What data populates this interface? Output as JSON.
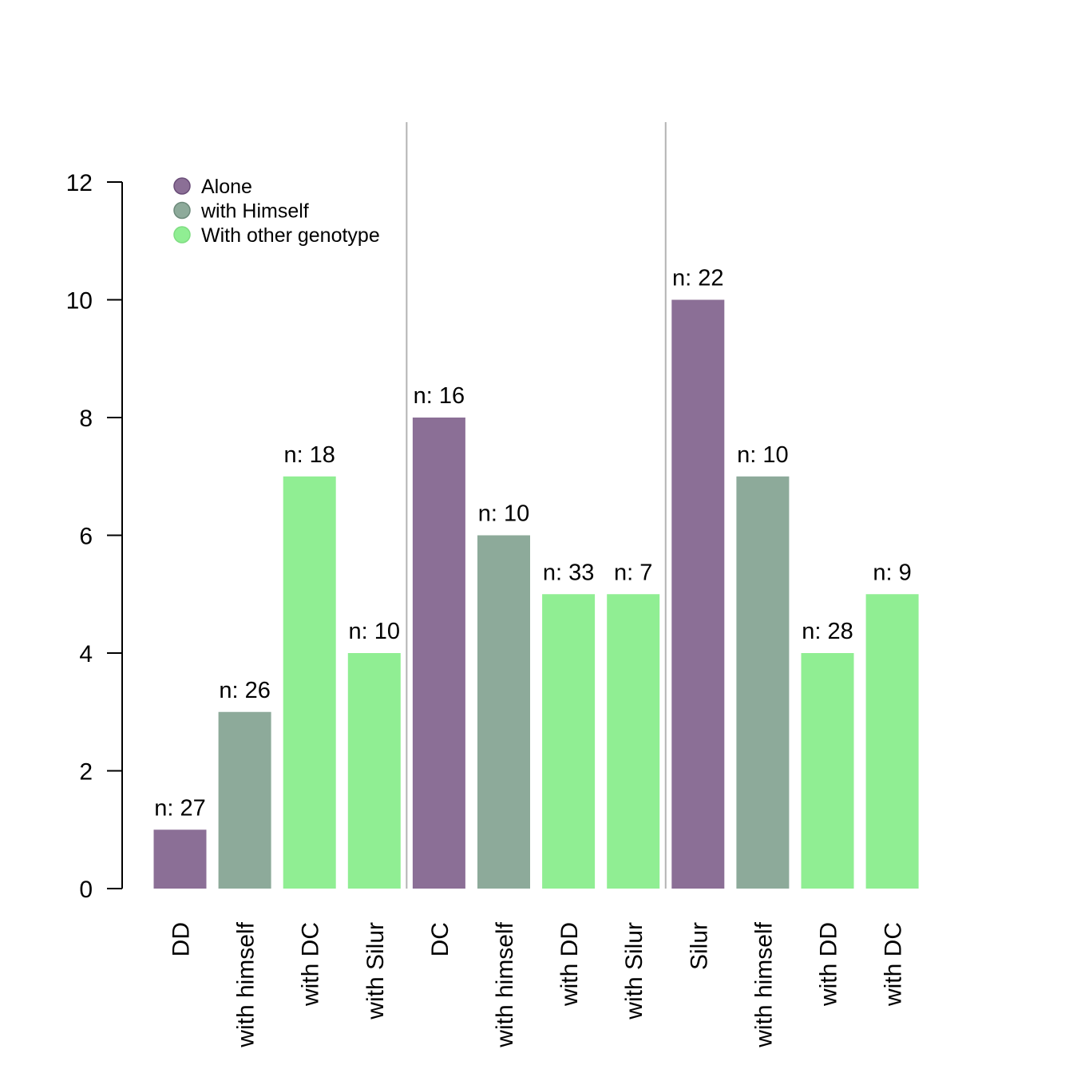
{
  "chart_data": {
    "type": "bar",
    "title": "",
    "xlabel": "",
    "ylabel": "",
    "ylim": [
      0,
      12
    ],
    "yticks": [
      0,
      2,
      4,
      6,
      8,
      10,
      12
    ],
    "categories": [
      "DD",
      "with himself",
      "with DC",
      "with Silur",
      "DC",
      "with himself",
      "with DD",
      "with Silur",
      "Silur",
      "with himself",
      "with DD",
      "with DC"
    ],
    "values": [
      1,
      3,
      7,
      4,
      8,
      6,
      5,
      5,
      10,
      7,
      4,
      5
    ],
    "groups": [
      "alone",
      "himself",
      "other",
      "other",
      "alone",
      "himself",
      "other",
      "other",
      "alone",
      "himself",
      "other",
      "other"
    ],
    "n_labels": [
      "n: 27",
      "n: 26",
      "n: 18",
      "n: 10",
      "n: 16",
      "n: 10",
      "n: 33",
      "n: 7",
      "n: 22",
      "n: 10",
      "n: 28",
      "n: 9"
    ],
    "separators_after": [
      4,
      8
    ],
    "legend": {
      "position": "top-left",
      "entries": [
        {
          "key": "alone",
          "label": "Alone",
          "color": "#8b6f96"
        },
        {
          "key": "himself",
          "label": "with Himself",
          "color": "#8daa9a"
        },
        {
          "key": "other",
          "label": "With other genotype",
          "color": "#90ee93"
        }
      ]
    },
    "colors": {
      "alone": "#8b6f96",
      "himself": "#8daa9a",
      "other": "#90ee93",
      "separator": "#b3b3b3"
    },
    "grid": false
  }
}
